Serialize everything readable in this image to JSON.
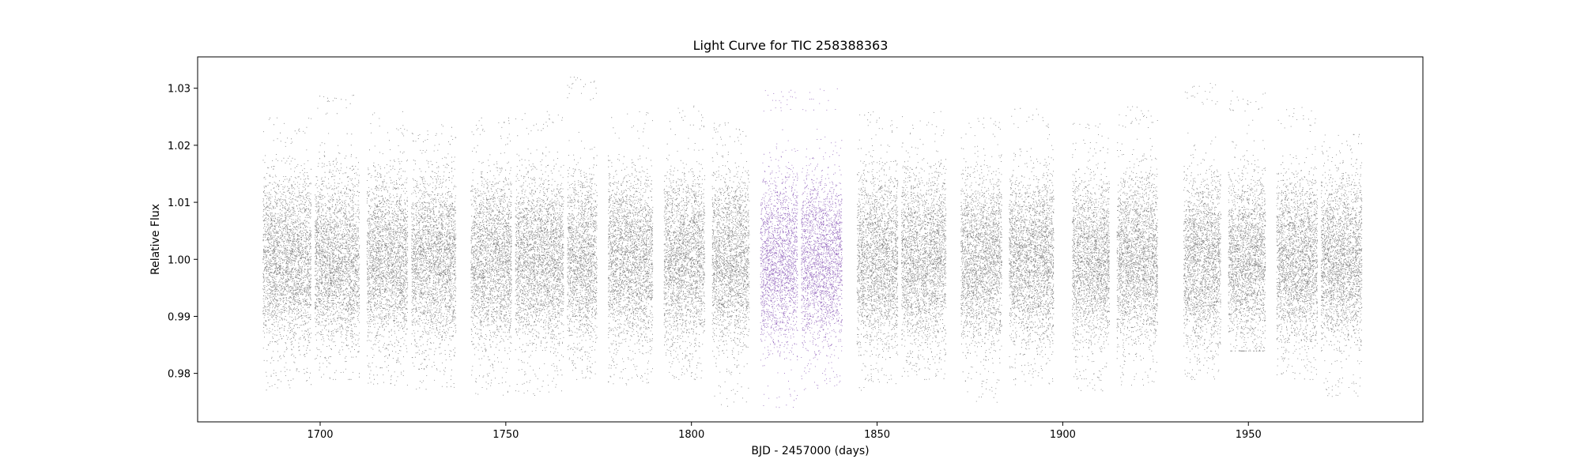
{
  "chart_data": {
    "type": "scatter",
    "title": "Light Curve for TIC 258388363",
    "xlabel": "BJD - 2457000 (days)",
    "ylabel": "Relative Flux",
    "xlim": [
      1667,
      1997
    ],
    "ylim": [
      0.9715,
      1.0355
    ],
    "xticks": [
      1700,
      1750,
      1800,
      1850,
      1900,
      1950
    ],
    "yticks": [
      0.98,
      0.99,
      1.0,
      1.01,
      1.02,
      1.03
    ],
    "xtick_labels": [
      "1700",
      "1750",
      "1800",
      "1850",
      "1900",
      "1950"
    ],
    "ytick_labels": [
      "0.98",
      "0.99",
      "1.00",
      "1.01",
      "1.02",
      "1.03"
    ],
    "grid": false,
    "legend": "none",
    "series": [
      {
        "color": "#7f7f7f",
        "segments": [
          {
            "x": [
              1684.5,
              1697.5
            ],
            "y_min": 0.977,
            "y_max": 1.025
          },
          {
            "x": [
              1698.5,
              1710.5
            ],
            "y_min": 0.979,
            "y_max": 1.029
          },
          {
            "x": [
              1712.5,
              1723.5
            ],
            "y_min": 0.978,
            "y_max": 1.026
          },
          {
            "x": [
              1724.5,
              1736.5
            ],
            "y_min": 0.977,
            "y_max": 1.024
          },
          {
            "x": [
              1740.5,
              1751.5
            ],
            "y_min": 0.976,
            "y_max": 1.025
          },
          {
            "x": [
              1752.5,
              1765.5
            ],
            "y_min": 0.976,
            "y_max": 1.026
          },
          {
            "x": [
              1766.5,
              1774.5
            ],
            "y_min": 0.979,
            "y_max": 1.032
          },
          {
            "x": [
              1777.5,
              1789.5
            ],
            "y_min": 0.978,
            "y_max": 1.026
          },
          {
            "x": [
              1792.5,
              1803.5
            ],
            "y_min": 0.979,
            "y_max": 1.027
          },
          {
            "x": [
              1805.5,
              1815.5
            ],
            "y_min": 0.974,
            "y_max": 1.024
          },
          {
            "x": [
              1844.5,
              1855.5
            ],
            "y_min": 0.977,
            "y_max": 1.026
          },
          {
            "x": [
              1856.5,
              1868.5
            ],
            "y_min": 0.979,
            "y_max": 1.026
          },
          {
            "x": [
              1872.5,
              1883.5
            ],
            "y_min": 0.975,
            "y_max": 1.025
          },
          {
            "x": [
              1885.5,
              1897.5
            ],
            "y_min": 0.978,
            "y_max": 1.027
          },
          {
            "x": [
              1902.5,
              1912.5
            ],
            "y_min": 0.977,
            "y_max": 1.024
          },
          {
            "x": [
              1914.5,
              1925.5
            ],
            "y_min": 0.978,
            "y_max": 1.027
          },
          {
            "x": [
              1932.5,
              1942.5
            ],
            "y_min": 0.979,
            "y_max": 1.031
          },
          {
            "x": [
              1944.5,
              1954.5
            ],
            "y_min": 0.984,
            "y_max": 1.03
          },
          {
            "x": [
              1957.5,
              1968.5
            ],
            "y_min": 0.979,
            "y_max": 1.027
          },
          {
            "x": [
              1969.5,
              1980.5
            ],
            "y_min": 0.976,
            "y_max": 1.022
          }
        ]
      },
      {
        "color": "#9467bd",
        "segments": [
          {
            "x": [
              1818.5,
              1828.5
            ],
            "y_min": 0.974,
            "y_max": 1.03
          },
          {
            "x": [
              1829.5,
              1840.5
            ],
            "y_min": 0.977,
            "y_max": 1.03
          }
        ]
      }
    ]
  }
}
